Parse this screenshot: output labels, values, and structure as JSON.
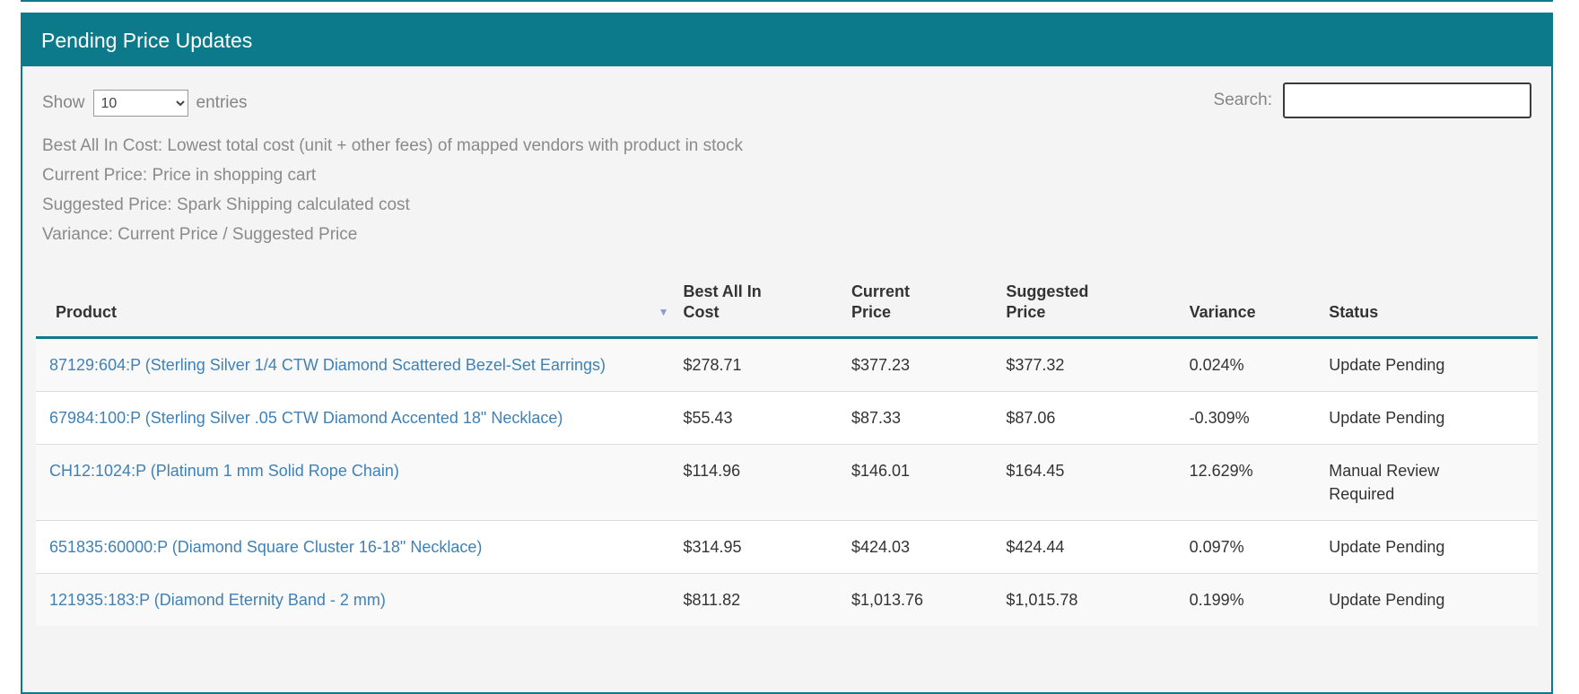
{
  "panel": {
    "title": "Pending Price Updates"
  },
  "controls": {
    "show_label": "Show",
    "page_size": "10",
    "entries_label": "entries",
    "search_label": "Search:",
    "search_value": ""
  },
  "descriptions": [
    "Best All In Cost: Lowest total cost (unit + other fees) of mapped vendors with product in stock",
    "Current Price: Price in shopping cart",
    "Suggested Price: Spark Shipping calculated cost",
    "Variance: Current Price / Suggested Price"
  ],
  "table": {
    "columns": [
      "Product",
      "Best All In Cost",
      "Current Price",
      "Suggested Price",
      "Variance",
      "Status"
    ],
    "sort_icon": "▼",
    "rows": [
      {
        "product": "87129:604:P (Sterling Silver 1/4 CTW Diamond Scattered Bezel-Set Earrings)",
        "best_all_in_cost": "$278.71",
        "current_price": "$377.23",
        "suggested_price": "$377.32",
        "variance": "0.024%",
        "status": "Update Pending"
      },
      {
        "product": "67984:100:P (Sterling Silver .05 CTW Diamond Accented 18\" Necklace)",
        "best_all_in_cost": "$55.43",
        "current_price": "$87.33",
        "suggested_price": "$87.06",
        "variance": "-0.309%",
        "status": "Update Pending"
      },
      {
        "product": "CH12:1024:P (Platinum 1 mm Solid Rope Chain)",
        "best_all_in_cost": "$114.96",
        "current_price": "$146.01",
        "suggested_price": "$164.45",
        "variance": "12.629%",
        "status": "Manual Review Required"
      },
      {
        "product": "651835:60000:P (Diamond Square Cluster 16-18\" Necklace)",
        "best_all_in_cost": "$314.95",
        "current_price": "$424.03",
        "suggested_price": "$424.44",
        "variance": "0.097%",
        "status": "Update Pending"
      },
      {
        "product": "121935:183:P (Diamond Eternity Band - 2 mm)",
        "best_all_in_cost": "$811.82",
        "current_price": "$1,013.76",
        "suggested_price": "$1,015.78",
        "variance": "0.199%",
        "status": "Update Pending"
      }
    ]
  },
  "colors": {
    "header_teal": "#0d7a8b",
    "header_underline_teal": "#11778a",
    "link_blue": "#3f81b6",
    "sort_icon_purple": "#8c96d8",
    "stripe_gray": "#f9f9f9",
    "muted_text": "#8a8a8a"
  }
}
